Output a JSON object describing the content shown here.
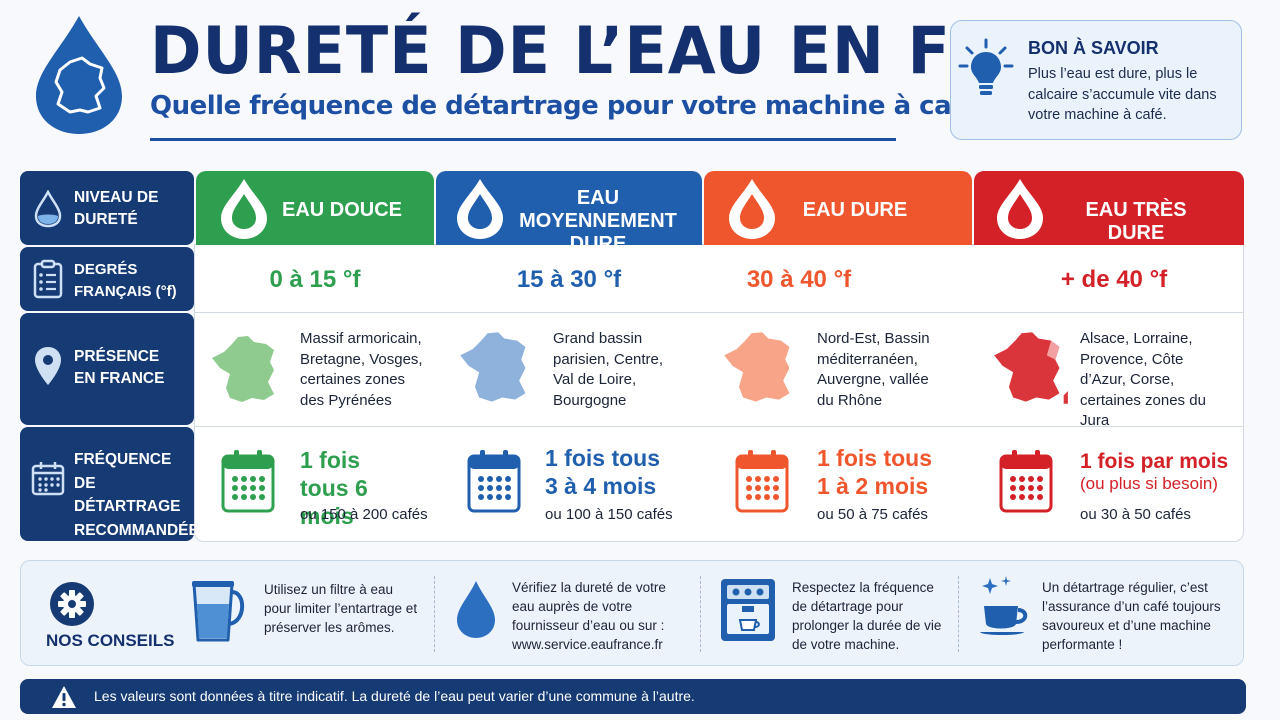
{
  "header": {
    "title": "DURETÉ DE L’EAU EN FRANCE",
    "subtitle": "Quelle fréquence de détartrage pour votre machine à café ?"
  },
  "tip": {
    "title": "BON À SAVOIR",
    "text": "Plus l’eau est dure, plus le calcaire s’accumule vite dans votre machine à café.",
    "icon": "lightbulb-icon"
  },
  "rows": {
    "niveau": "NIVEAU DE DURETÉ",
    "degres": "DEGRÉS FRANÇAIS (°f)",
    "presence": "PRÉSENCE EN FRANCE",
    "frequence": "FRÉQUENCE DE DÉTARTRAGE RECOMMANDÉE"
  },
  "levels": [
    {
      "label": "EAU DOUCE",
      "color": "#2e9e4f",
      "degrees": "0 à 15 °f",
      "regions": "Massif armoricain, Bretagne, Vosges, certaines zones des Pyrénées",
      "frequency": "1 fois tous 6 mois",
      "frequency_note": "",
      "cafes": "ou 150 à 200 cafés"
    },
    {
      "label": "EAU MOYENNEMENT DURE",
      "color": "#1f5fae",
      "degrees": "15 à 30 °f",
      "regions": "Grand bassin parisien, Centre, Val de Loire, Bourgogne",
      "frequency": "1 fois tous 3 à 4 mois",
      "frequency_note": "",
      "cafes": "ou 100 à 150 cafés"
    },
    {
      "label": "EAU DURE",
      "color": "#f0562d",
      "degrees": "30 à 40 °f",
      "regions": "Nord-Est, Bassin méditerranéen, Auvergne, vallée du Rhône",
      "frequency": "1 fois tous 1 à 2 mois",
      "frequency_note": "",
      "cafes": "ou 50 à 75 cafés"
    },
    {
      "label": "EAU TRÈS DURE",
      "color": "#d42027",
      "degrees": "+ de 40 °f",
      "regions": "Alsace, Lorraine, Provence, Côte d’Azur, Corse, certaines zones du Jura",
      "frequency": "1 fois par mois",
      "frequency_note": "(ou plus si besoin)",
      "cafes": "ou 30 à 50 cafés"
    }
  ],
  "conseils": {
    "title": "NOS CONSEILS",
    "items": [
      {
        "icon": "water-filter-pitcher-icon",
        "text": "Utilisez un filtre à eau pour limiter l’entartrage et préserver les arômes."
      },
      {
        "icon": "water-drop-icon",
        "text": "Vérifiez la dureté de votre eau auprès de votre fournisseur d’eau ou sur : www.service.eaufrance.fr"
      },
      {
        "icon": "coffee-machine-icon",
        "text": "Respectez la fréquence de détartrage pour prolonger la durée de vie de votre machine."
      },
      {
        "icon": "coffee-cup-icon",
        "text": "Un détartrage régulier, c’est l’assurance d’un café toujours savoureux et d’une machine performante !"
      }
    ]
  },
  "footer": {
    "text": "Les valeurs sont données à titre indicatif. La dureté de l’eau peut varier d’une commune à l’autre.",
    "icon": "warning-icon"
  }
}
